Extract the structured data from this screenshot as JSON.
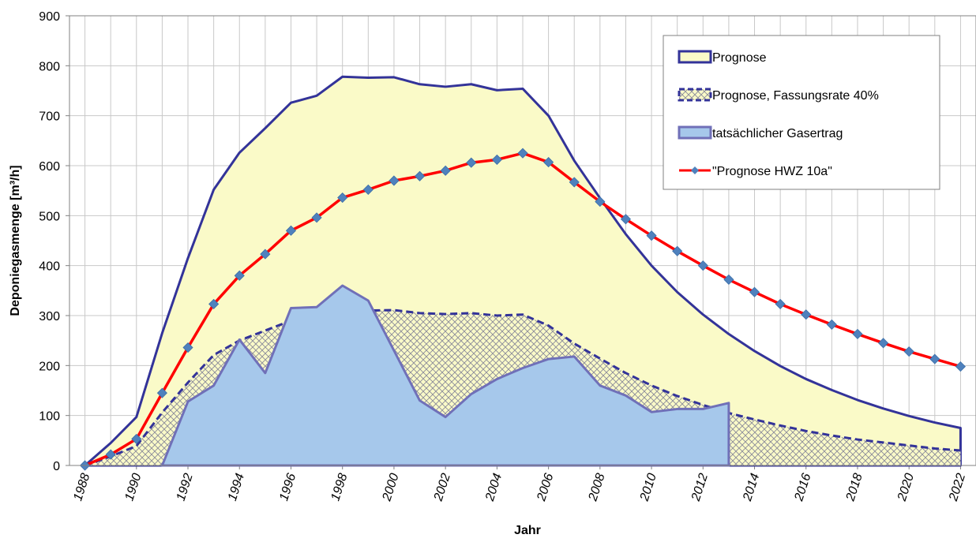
{
  "chart_data": {
    "type": "area-line",
    "x_label": "Jahr",
    "y_label": "Deponiegasmenge [m³/h]",
    "x": [
      1988,
      1989,
      1990,
      1991,
      1992,
      1993,
      1994,
      1995,
      1996,
      1997,
      1998,
      1999,
      2000,
      2001,
      2002,
      2003,
      2004,
      2005,
      2006,
      2007,
      2008,
      2009,
      2010,
      2011,
      2012,
      2013,
      2014,
      2015,
      2016,
      2017,
      2018,
      2019,
      2020,
      2021,
      2022
    ],
    "xlim": [
      1987.4,
      2022.6
    ],
    "xticks": [
      1988,
      1990,
      1992,
      1994,
      1996,
      1998,
      2000,
      2002,
      2004,
      2006,
      2008,
      2010,
      2012,
      2014,
      2016,
      2018,
      2020,
      2022
    ],
    "ylim": [
      0,
      900
    ],
    "yticks": [
      0,
      100,
      200,
      300,
      400,
      500,
      600,
      700,
      800,
      900
    ],
    "grid": true,
    "legend": "top-right",
    "series": [
      {
        "name": "Prognose",
        "kind": "area",
        "color": "#333399",
        "fill": "#fafac8",
        "values": [
          0,
          45,
          97,
          265,
          415,
          552,
          626,
          675,
          726,
          740,
          778,
          776,
          777,
          763,
          758,
          763,
          751,
          754,
          700,
          610,
          535,
          463,
          400,
          347,
          302,
          263,
          229,
          199,
          173,
          151,
          131,
          114,
          99,
          86,
          75
        ]
      },
      {
        "name": "Prognose, Fassungsrate 40%",
        "kind": "area",
        "color": "#333399",
        "fill": "#fafac8",
        "pattern": "crosshatch",
        "dashed": true,
        "values": [
          0,
          18,
          39,
          106,
          166,
          221,
          250,
          270,
          290,
          296,
          311,
          310,
          311,
          305,
          303,
          305,
          300,
          302,
          280,
          244,
          214,
          185,
          160,
          139,
          121,
          105,
          92,
          80,
          69,
          60,
          52,
          46,
          40,
          34,
          30
        ]
      },
      {
        "name": "tatsächlicher Gasertrag",
        "kind": "area",
        "color": "#7070b8",
        "fill": "#a6c8eb",
        "values": [
          null,
          null,
          null,
          0,
          128,
          160,
          252,
          185,
          315,
          317,
          360,
          330,
          230,
          130,
          97,
          143,
          173,
          195,
          213,
          218,
          160,
          140,
          107,
          113,
          113,
          125,
          null,
          null,
          null,
          null,
          null,
          null,
          null,
          null,
          null
        ]
      },
      {
        "name": "\"Prognose HWZ 10a\"",
        "kind": "line",
        "color": "#ff0000",
        "marker": "diamond",
        "marker_color": "#4f81bd",
        "values": [
          0,
          22,
          53,
          145,
          236,
          323,
          380,
          423,
          470,
          496,
          536,
          552,
          570,
          579,
          590,
          606,
          612,
          625,
          607,
          567,
          528,
          493,
          460,
          429,
          400,
          372,
          347,
          323,
          302,
          282,
          263,
          245,
          228,
          213,
          198
        ]
      }
    ]
  }
}
